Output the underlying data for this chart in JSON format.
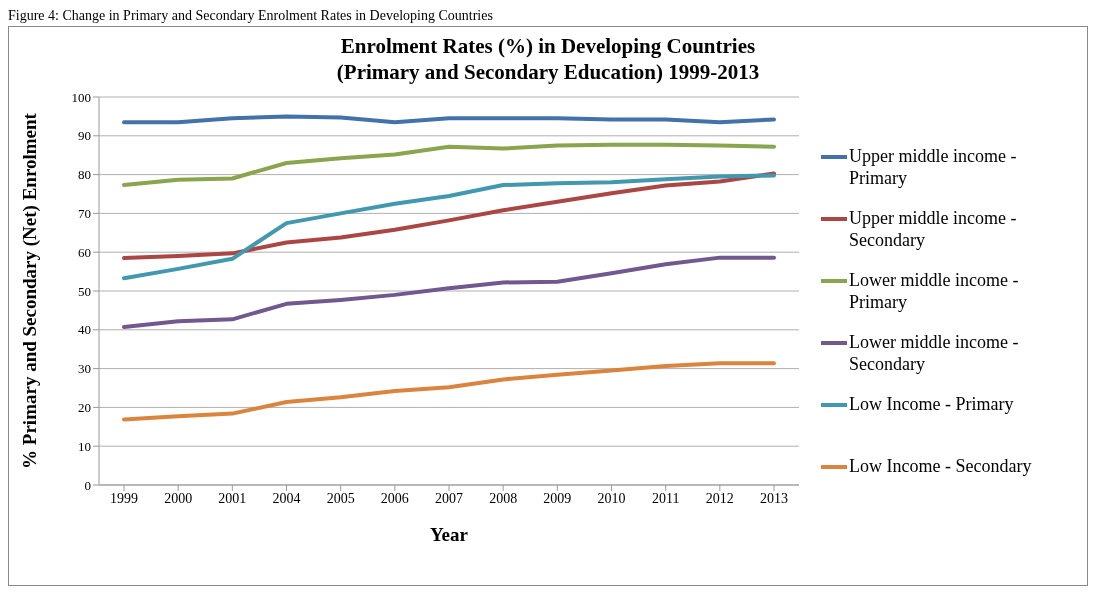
{
  "chart_data": {
    "type": "line",
    "title": "Enrolment Rates (%) in Developing Countries\n(Primary and Secondary Education) 1999-2013",
    "xlabel": "Year",
    "ylabel": "% Primary and Secondary (Net) Enrolment",
    "annotations": [
      "Figure 4: Change in Primary and Secondary Enrolment Rates in Developing Countries"
    ],
    "categories": [
      "1999",
      "2000",
      "2001",
      "2004",
      "2005",
      "2006",
      "2007",
      "2008",
      "2009",
      "2010",
      "2011",
      "2012",
      "2013"
    ],
    "series": [
      {
        "name": "Upper middle income - Primary",
        "color": "#4372aa",
        "values": [
          93.5,
          93.5,
          94.5,
          95,
          94.7,
          93.5,
          94.5,
          94.5,
          94.5,
          94.2,
          94.2,
          93.5,
          94.2
        ]
      },
      {
        "name": "Upper middle income - Secondary",
        "color": "#aa4643",
        "values": [
          58.5,
          59,
          59.7,
          62.5,
          63.8,
          65.8,
          68.2,
          70.8,
          73,
          75.2,
          77.2,
          78.2,
          80.3
        ]
      },
      {
        "name": "Lower middle income - Primary",
        "color": "#89a54e",
        "values": [
          77.3,
          78.7,
          79,
          83,
          84.2,
          85.2,
          87.2,
          86.7,
          87.5,
          87.7,
          87.7,
          87.5,
          87.2
        ]
      },
      {
        "name": "Lower middle income - Secondary",
        "color": "#71588f",
        "values": [
          40.7,
          42.2,
          42.7,
          46.7,
          47.7,
          49,
          50.7,
          52.2,
          52.4,
          54.6,
          56.9,
          58.6,
          58.6
        ]
      },
      {
        "name": "Low Income - Primary",
        "color": "#4198af",
        "values": [
          53.3,
          55.7,
          58.3,
          67.5,
          70,
          72.5,
          74.5,
          77.3,
          77.8,
          78,
          78.8,
          79.5,
          79.8
        ]
      },
      {
        "name": "Low Income - Secondary",
        "color": "#db843d",
        "values": [
          16.9,
          17.7,
          18.4,
          21.4,
          22.6,
          24.2,
          25.2,
          27.2,
          28.4,
          29.5,
          30.7,
          31.4,
          31.4
        ]
      }
    ],
    "ylim": [
      0,
      100
    ],
    "yticks": [
      0,
      10,
      20,
      30,
      40,
      50,
      60,
      70,
      80,
      90,
      100
    ],
    "grid": "y",
    "legend": "right",
    "marker": "none",
    "line_style": "solid"
  }
}
